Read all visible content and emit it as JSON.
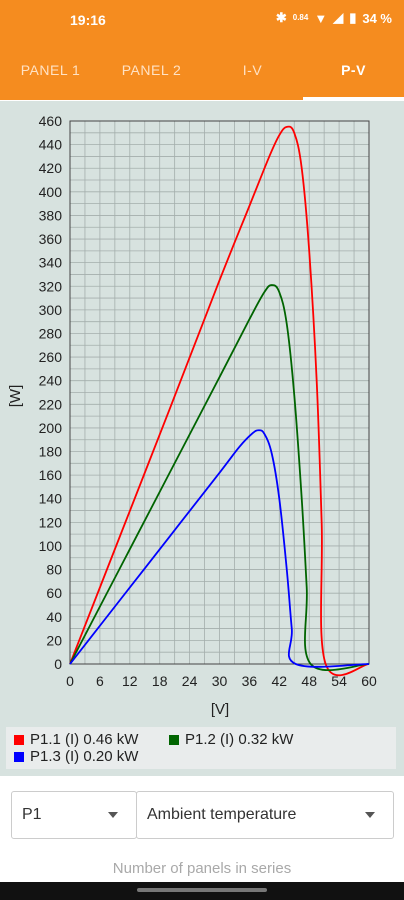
{
  "status": {
    "time": "19:16",
    "battery": "34 %",
    "data_rate": "0.84"
  },
  "tabs": [
    {
      "label": "PANEL 1"
    },
    {
      "label": "PANEL 2"
    },
    {
      "label": "I-V"
    },
    {
      "label": "P-V"
    }
  ],
  "chart_data": {
    "type": "line",
    "xlabel": "[V]",
    "ylabel": "[W]",
    "xlim": [
      0,
      60
    ],
    "ylim": [
      0,
      460
    ],
    "x_ticks": [
      "0",
      "6",
      "12",
      "18",
      "24",
      "30",
      "36",
      "42",
      "48",
      "54",
      "60"
    ],
    "y_ticks": [
      "0",
      "20",
      "40",
      "60",
      "80",
      "100",
      "120",
      "140",
      "160",
      "180",
      "200",
      "220",
      "240",
      "260",
      "280",
      "300",
      "320",
      "340",
      "360",
      "380",
      "400",
      "420",
      "440",
      "460"
    ],
    "grid": true,
    "legend_position": "bottom",
    "series": [
      {
        "name": "P1.1 (I) 0.46 kW",
        "color": "#ff0000",
        "x": [
          0,
          10,
          20,
          30,
          36,
          40,
          42,
          43.5,
          45,
          46.5,
          48,
          49.5,
          50.5,
          51.3,
          60
        ],
        "y": [
          0,
          108,
          216,
          325,
          388,
          430,
          448,
          455,
          450,
          420,
          350,
          240,
          120,
          0,
          0
        ]
      },
      {
        "name": "P1.2 (I) 0.32 kW",
        "color": "#006400",
        "x": [
          0,
          10,
          20,
          30,
          36,
          39,
          40.5,
          42,
          43.5,
          45,
          46.5,
          47.5,
          48.3,
          60
        ],
        "y": [
          0,
          81,
          162,
          243,
          292,
          315,
          321,
          315,
          288,
          228,
          140,
          65,
          0,
          0
        ]
      },
      {
        "name": "P1.3 (I) 0.20 kW",
        "color": "#0000ff",
        "x": [
          0,
          10,
          20,
          30,
          34,
          36.5,
          37.8,
          39,
          40.5,
          42,
          43.5,
          44.5,
          45.3,
          60
        ],
        "y": [
          0,
          54,
          108,
          162,
          184,
          195,
          198,
          195,
          178,
          140,
          80,
          30,
          0,
          0
        ]
      }
    ]
  },
  "controls": {
    "panel_select": "P1",
    "parameter_select": "Ambient temperature",
    "helper_text": "Number of panels in series"
  },
  "colors": {
    "accent": "#f58c1f",
    "chart_bg": "#d7e2df"
  }
}
